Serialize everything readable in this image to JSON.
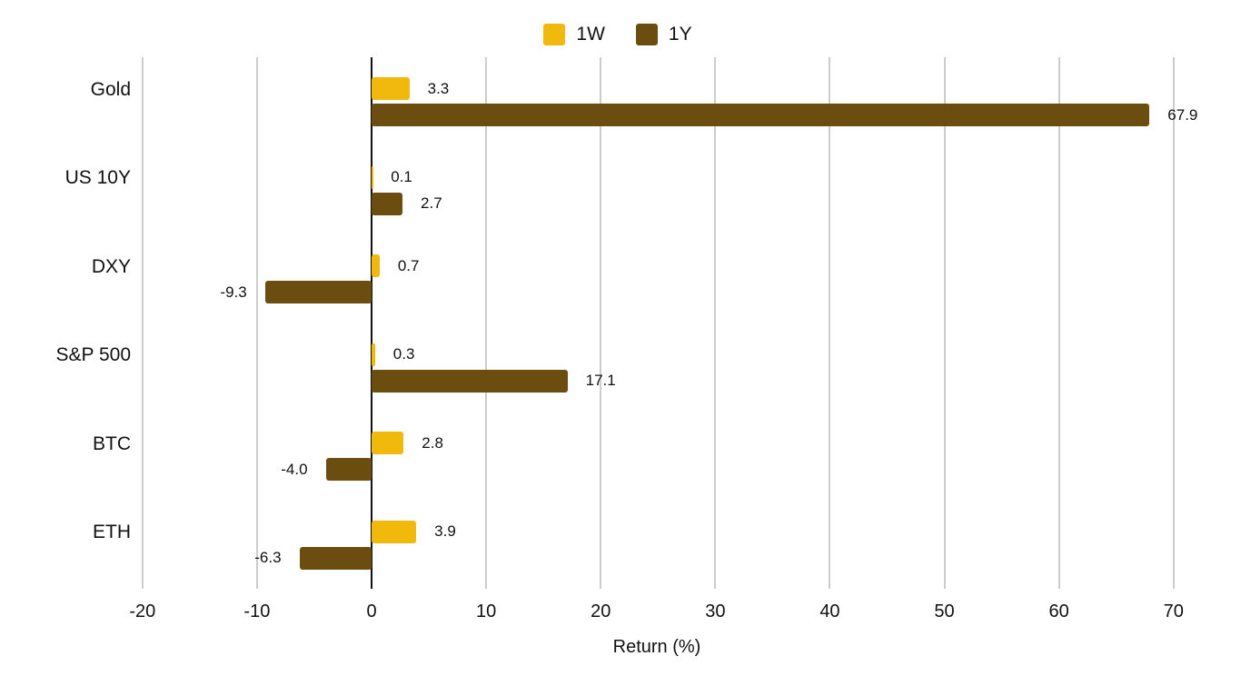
{
  "chart_data": {
    "type": "bar",
    "orientation": "horizontal",
    "title": "",
    "xlabel": "Return (%)",
    "ylabel": "",
    "xlim": [
      -20,
      70
    ],
    "x_ticks": [
      "-20",
      "-10",
      "0",
      "10",
      "20",
      "30",
      "40",
      "50",
      "60",
      "70"
    ],
    "grid": true,
    "legend_position": "top",
    "categories": [
      "Gold",
      "US 10Y",
      "DXY",
      "S&P 500",
      "BTC",
      "ETH"
    ],
    "series": [
      {
        "name": "1W",
        "color": "#F0B90B",
        "values": [
          3.3,
          0.1,
          0.7,
          0.3,
          2.8,
          3.9
        ],
        "labels": [
          "3.3",
          "0.1",
          "0.7",
          "0.3",
          "2.8",
          "3.9"
        ]
      },
      {
        "name": "1Y",
        "color": "#6B4E0F",
        "values": [
          67.9,
          2.7,
          -9.3,
          17.1,
          -4.0,
          -6.3
        ],
        "labels": [
          "67.9",
          "2.7",
          "-9.3",
          "17.1",
          "-4.0",
          "-6.3"
        ]
      }
    ]
  },
  "legend": [
    {
      "label": "1W",
      "color": "#F0B90B"
    },
    {
      "label": "1Y",
      "color": "#6B4E0F"
    }
  ]
}
